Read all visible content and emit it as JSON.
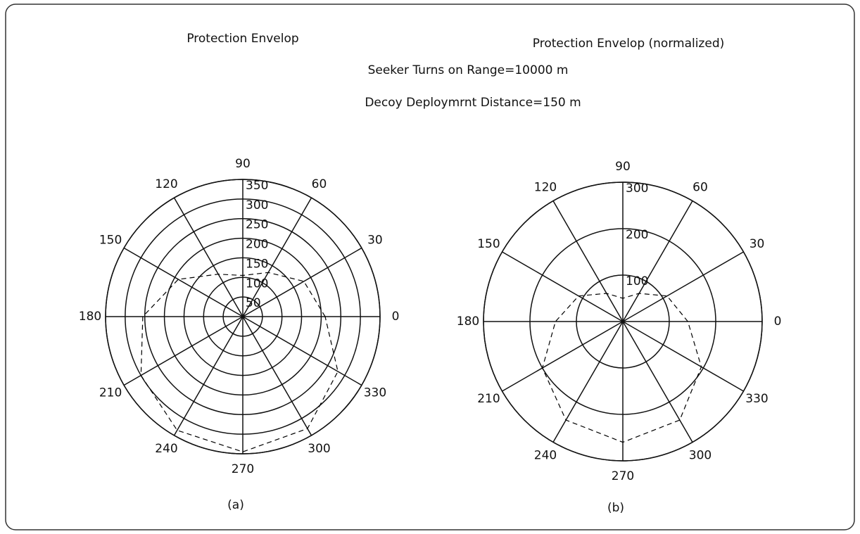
{
  "subtitles": [
    "Seeker Turns on Range=10000 m",
    "Decoy Deploymrnt Distance=150 m"
  ],
  "chart_data": [
    {
      "type": "polar",
      "title": "Protection Envelop",
      "caption": "(a)",
      "rlim": [
        0,
        350
      ],
      "rticks": [
        50,
        100,
        150,
        200,
        250,
        300,
        350
      ],
      "thetaticks": [
        0,
        30,
        60,
        90,
        120,
        150,
        180,
        210,
        240,
        270,
        300,
        330
      ],
      "theta": [
        0,
        30,
        60,
        90,
        120,
        150,
        180,
        210,
        240,
        270,
        300,
        330
      ],
      "values": [
        210,
        180,
        130,
        105,
        125,
        190,
        255,
        300,
        335,
        345,
        330,
        280
      ],
      "color": "#000000",
      "linestyle": "dashed"
    },
    {
      "type": "polar",
      "title": "Protection Envelop (normalized)",
      "caption": "(b)",
      "rlim": [
        0,
        300
      ],
      "rticks": [
        100,
        200,
        300
      ],
      "thetaticks": [
        0,
        30,
        60,
        90,
        120,
        150,
        180,
        210,
        240,
        270,
        300,
        330
      ],
      "theta": [
        0,
        30,
        60,
        90,
        120,
        150,
        180,
        210,
        240,
        270,
        300,
        330
      ],
      "values": [
        140,
        110,
        70,
        50,
        70,
        110,
        145,
        200,
        245,
        260,
        245,
        195
      ],
      "color": "#000000",
      "linestyle": "dashed"
    }
  ]
}
